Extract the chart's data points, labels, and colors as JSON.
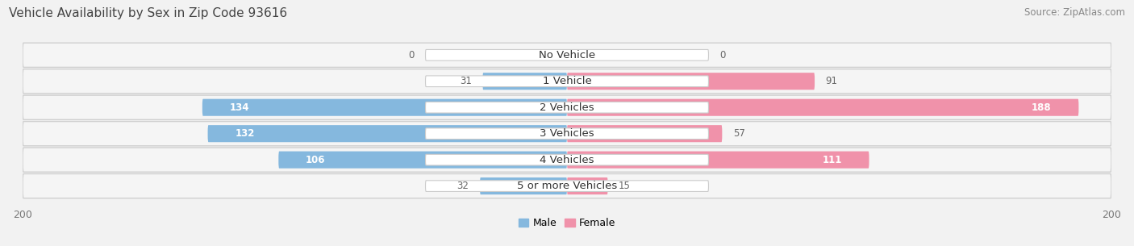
{
  "title": "Vehicle Availability by Sex in Zip Code 93616",
  "source": "Source: ZipAtlas.com",
  "categories": [
    "No Vehicle",
    "1 Vehicle",
    "2 Vehicles",
    "3 Vehicles",
    "4 Vehicles",
    "5 or more Vehicles"
  ],
  "male_values": [
    0,
    31,
    134,
    132,
    106,
    32
  ],
  "female_values": [
    0,
    91,
    188,
    57,
    111,
    15
  ],
  "male_color": "#85b8de",
  "female_color": "#f092aa",
  "male_label": "Male",
  "female_label": "Female",
  "axis_max": 200,
  "background_color": "#f2f2f2",
  "row_color": "#e8e8e8",
  "row_color_light": "#f8f8f8",
  "title_fontsize": 11,
  "source_fontsize": 8.5,
  "value_fontsize": 8.5,
  "category_fontsize": 9.5,
  "legend_fontsize": 9,
  "axis_label_fontsize": 9
}
